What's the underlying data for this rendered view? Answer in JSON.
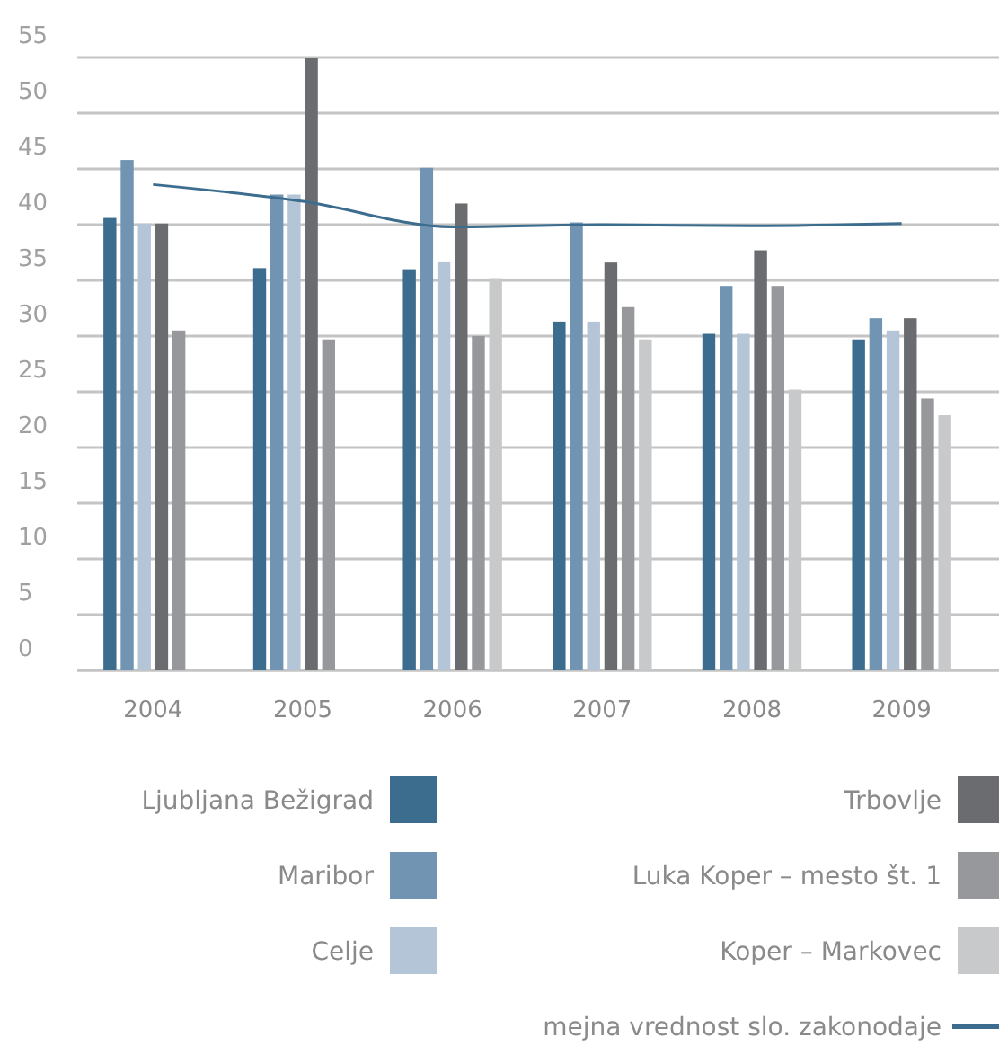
{
  "chart_data": {
    "type": "bar",
    "categories": [
      "2004",
      "2005",
      "2006",
      "2007",
      "2008",
      "2009"
    ],
    "series": [
      {
        "name": "Ljubljana Bežigrad",
        "color": "#3d6d8e",
        "values": [
          40.6,
          36.1,
          36.0,
          31.3,
          30.2,
          29.7
        ]
      },
      {
        "name": "Maribor",
        "color": "#7094b2",
        "values": [
          45.8,
          42.7,
          45.1,
          40.2,
          34.5,
          31.6
        ]
      },
      {
        "name": "Celje",
        "color": "#b4c5d8",
        "values": [
          40.1,
          42.7,
          36.7,
          31.3,
          30.2,
          30.5
        ]
      },
      {
        "name": "Trbovlje",
        "color": "#6b6c70",
        "values": [
          40.1,
          55,
          41.9,
          36.6,
          37.7,
          31.6
        ]
      },
      {
        "name": "Luka Koper – mesto št. 1",
        "color": "#97989c",
        "values": [
          30.5,
          29.7,
          30.0,
          32.6,
          34.5,
          24.4
        ]
      },
      {
        "name": "Koper – Markovec",
        "color": "#c8c9cb",
        "values": [
          null,
          null,
          35.2,
          29.7,
          25.2,
          22.9
        ]
      },
      {
        "name": "mejna vrednost slo. zakonodaje",
        "type": "line",
        "color": "#3d6d8e",
        "values": [
          43.6,
          42.1,
          39.8,
          40.0,
          39.9,
          40.1
        ]
      }
    ],
    "ylim": [
      0,
      55
    ],
    "yticks": [
      0,
      5,
      10,
      15,
      20,
      25,
      30,
      35,
      40,
      45,
      50,
      55
    ],
    "grid": "y",
    "legend": "bottom",
    "marker": "none"
  }
}
